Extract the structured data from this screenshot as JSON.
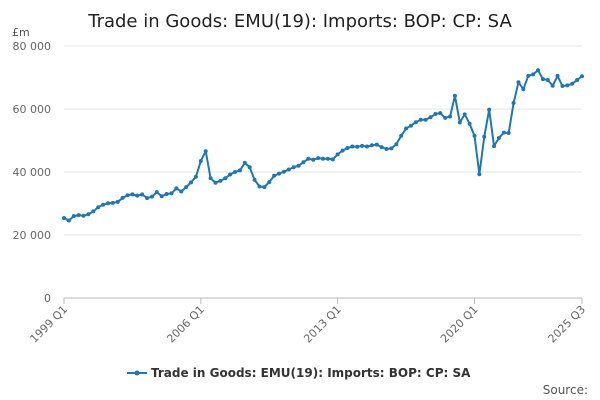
{
  "chart_data": {
    "type": "line",
    "title": "Trade in Goods: EMU(19): Imports: BOP: CP: SA",
    "unit_label": "£m",
    "source_label": "Source:",
    "y_ticks": [
      0,
      20000,
      40000,
      60000,
      80000
    ],
    "y_tick_labels": [
      "0",
      "20 000",
      "40 000",
      "60 000",
      "80 000"
    ],
    "ylim": [
      0,
      80000
    ],
    "x_ticks": [
      "1999 Q1",
      "2006 Q1",
      "2013 Q1",
      "2020 Q1",
      "2025 Q3"
    ],
    "grid": "horizontal",
    "legend_position": "bottom",
    "series": [
      {
        "name": "Trade in Goods: EMU(19): Imports: BOP: CP: SA",
        "color": "#1f77b4",
        "x": [
          "1999 Q1",
          "1999 Q2",
          "1999 Q3",
          "1999 Q4",
          "2000 Q1",
          "2000 Q2",
          "2000 Q3",
          "2000 Q4",
          "2001 Q1",
          "2001 Q2",
          "2001 Q3",
          "2001 Q4",
          "2002 Q1",
          "2002 Q2",
          "2002 Q3",
          "2002 Q4",
          "2003 Q1",
          "2003 Q2",
          "2003 Q3",
          "2003 Q4",
          "2004 Q1",
          "2004 Q2",
          "2004 Q3",
          "2004 Q4",
          "2005 Q1",
          "2005 Q2",
          "2005 Q3",
          "2005 Q4",
          "2006 Q1",
          "2006 Q2",
          "2006 Q3",
          "2006 Q4",
          "2007 Q1",
          "2007 Q2",
          "2007 Q3",
          "2007 Q4",
          "2008 Q1",
          "2008 Q2",
          "2008 Q3",
          "2008 Q4",
          "2009 Q1",
          "2009 Q2",
          "2009 Q3",
          "2009 Q4",
          "2010 Q1",
          "2010 Q2",
          "2010 Q3",
          "2010 Q4",
          "2011 Q1",
          "2011 Q2",
          "2011 Q3",
          "2011 Q4",
          "2012 Q1",
          "2012 Q2",
          "2012 Q3",
          "2012 Q4",
          "2013 Q1",
          "2013 Q2",
          "2013 Q3",
          "2013 Q4",
          "2014 Q1",
          "2014 Q2",
          "2014 Q3",
          "2014 Q4",
          "2015 Q1",
          "2015 Q2",
          "2015 Q3",
          "2015 Q4",
          "2016 Q1",
          "2016 Q2",
          "2016 Q3",
          "2016 Q4",
          "2017 Q1",
          "2017 Q2",
          "2017 Q3",
          "2017 Q4",
          "2018 Q1",
          "2018 Q2",
          "2018 Q3",
          "2018 Q4",
          "2019 Q1",
          "2019 Q2",
          "2019 Q3",
          "2019 Q4",
          "2020 Q1",
          "2020 Q2",
          "2020 Q3",
          "2020 Q4",
          "2021 Q1",
          "2021 Q2",
          "2021 Q3",
          "2021 Q4",
          "2022 Q1",
          "2022 Q2",
          "2022 Q3",
          "2022 Q4",
          "2023 Q1",
          "2023 Q2",
          "2023 Q3",
          "2023 Q4",
          "2024 Q1",
          "2024 Q2",
          "2024 Q3",
          "2024 Q4",
          "2025 Q1",
          "2025 Q2",
          "2025 Q3"
        ],
        "values": [
          25400,
          24600,
          26000,
          26300,
          26100,
          26600,
          27500,
          28800,
          29600,
          30100,
          30200,
          30500,
          31800,
          32600,
          32900,
          32500,
          32900,
          31700,
          32200,
          33600,
          32300,
          33000,
          33200,
          34800,
          33800,
          35200,
          36700,
          38500,
          43500,
          46600,
          38000,
          36600,
          37200,
          38000,
          39200,
          40000,
          40500,
          42900,
          41500,
          37500,
          35400,
          35200,
          36800,
          38800,
          39500,
          40100,
          40800,
          41500,
          42000,
          43100,
          44200,
          43900,
          44400,
          44200,
          44200,
          44000,
          45600,
          46800,
          47600,
          48100,
          48000,
          48300,
          48100,
          48500,
          48700,
          47900,
          47300,
          47500,
          48800,
          51500,
          53800,
          54700,
          55800,
          56600,
          56600,
          57400,
          58400,
          58700,
          57200,
          57600,
          64200,
          55700,
          58300,
          55300,
          51500,
          39300,
          51200,
          59800,
          48200,
          50800,
          52500,
          52400,
          61900,
          68500,
          66300,
          70500,
          71000,
          72300,
          69500,
          69200,
          67400,
          70500,
          67300,
          67500,
          68000,
          69200,
          70400
        ]
      }
    ]
  }
}
